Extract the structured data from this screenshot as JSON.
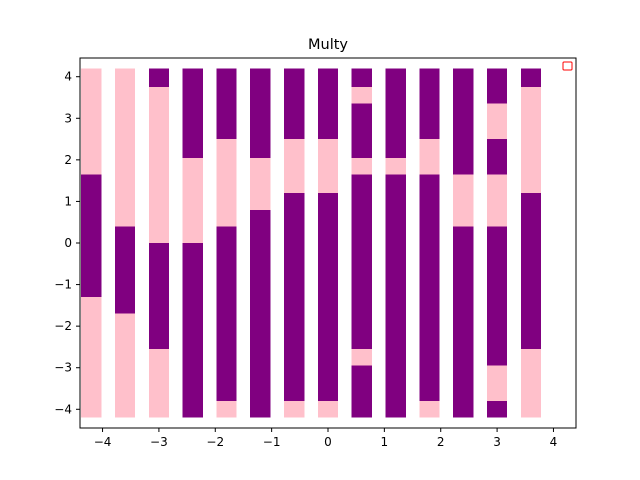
{
  "chart_data": {
    "type": "bar",
    "title": "Multy",
    "xlabel": "",
    "ylabel": "",
    "xlim": [
      -4.4,
      4.4
    ],
    "ylim": [
      -4.45,
      4.45
    ],
    "xticks": [
      -4,
      -3,
      -2,
      -1,
      0,
      1,
      2,
      3,
      4
    ],
    "yticks": [
      -4,
      -3,
      -2,
      -1,
      0,
      1,
      2,
      3,
      4
    ],
    "bar_width": 0.36,
    "y_bottom": -4.2,
    "y_top": 4.2,
    "legend": {
      "placement": "top-right",
      "entries": [
        ""
      ]
    },
    "colors": {
      "purple": "#800080",
      "pink": "#ffc0cb"
    },
    "bars": [
      {
        "x": -4.2,
        "segments": [
          {
            "from": -4.2,
            "to": -1.3,
            "color": "pink"
          },
          {
            "from": -1.3,
            "to": 1.65,
            "color": "purple"
          },
          {
            "from": 1.65,
            "to": 4.2,
            "color": "pink"
          }
        ]
      },
      {
        "x": -3.6,
        "segments": [
          {
            "from": -4.2,
            "to": -1.7,
            "color": "pink"
          },
          {
            "from": -1.7,
            "to": 0.4,
            "color": "purple"
          },
          {
            "from": 0.4,
            "to": 4.2,
            "color": "pink"
          }
        ]
      },
      {
        "x": -3.0,
        "segments": [
          {
            "from": -4.2,
            "to": -2.55,
            "color": "pink"
          },
          {
            "from": -2.55,
            "to": 0.0,
            "color": "purple"
          },
          {
            "from": 0.0,
            "to": 3.75,
            "color": "pink"
          },
          {
            "from": 3.75,
            "to": 4.2,
            "color": "purple"
          }
        ]
      },
      {
        "x": -2.4,
        "segments": [
          {
            "from": -4.2,
            "to": 0.0,
            "color": "purple"
          },
          {
            "from": 0.0,
            "to": 2.05,
            "color": "pink"
          },
          {
            "from": 2.05,
            "to": 4.2,
            "color": "purple"
          }
        ]
      },
      {
        "x": -1.8,
        "segments": [
          {
            "from": -4.2,
            "to": -3.8,
            "color": "pink"
          },
          {
            "from": -3.8,
            "to": 0.4,
            "color": "purple"
          },
          {
            "from": 0.4,
            "to": 2.5,
            "color": "pink"
          },
          {
            "from": 2.5,
            "to": 4.2,
            "color": "purple"
          }
        ]
      },
      {
        "x": -1.2,
        "segments": [
          {
            "from": -4.2,
            "to": 0.8,
            "color": "purple"
          },
          {
            "from": 0.8,
            "to": 2.05,
            "color": "pink"
          },
          {
            "from": 2.05,
            "to": 4.2,
            "color": "purple"
          }
        ]
      },
      {
        "x": -0.6,
        "segments": [
          {
            "from": -4.2,
            "to": -3.8,
            "color": "pink"
          },
          {
            "from": -3.8,
            "to": 1.2,
            "color": "purple"
          },
          {
            "from": 1.2,
            "to": 2.5,
            "color": "pink"
          },
          {
            "from": 2.5,
            "to": 4.2,
            "color": "purple"
          }
        ]
      },
      {
        "x": 0.0,
        "segments": [
          {
            "from": -4.2,
            "to": -3.8,
            "color": "pink"
          },
          {
            "from": -3.8,
            "to": 1.2,
            "color": "purple"
          },
          {
            "from": 1.2,
            "to": 2.5,
            "color": "pink"
          },
          {
            "from": 2.5,
            "to": 4.2,
            "color": "purple"
          }
        ]
      },
      {
        "x": 0.6,
        "segments": [
          {
            "from": -4.2,
            "to": -2.95,
            "color": "purple"
          },
          {
            "from": -2.95,
            "to": -2.55,
            "color": "pink"
          },
          {
            "from": -2.55,
            "to": 1.65,
            "color": "purple"
          },
          {
            "from": 1.65,
            "to": 2.05,
            "color": "pink"
          },
          {
            "from": 2.05,
            "to": 3.35,
            "color": "purple"
          },
          {
            "from": 3.35,
            "to": 3.75,
            "color": "pink"
          },
          {
            "from": 3.75,
            "to": 4.2,
            "color": "purple"
          }
        ]
      },
      {
        "x": 1.2,
        "segments": [
          {
            "from": -4.2,
            "to": 1.65,
            "color": "purple"
          },
          {
            "from": 1.65,
            "to": 2.05,
            "color": "pink"
          },
          {
            "from": 2.05,
            "to": 4.2,
            "color": "purple"
          }
        ]
      },
      {
        "x": 1.8,
        "segments": [
          {
            "from": -4.2,
            "to": -3.8,
            "color": "pink"
          },
          {
            "from": -3.8,
            "to": 1.65,
            "color": "purple"
          },
          {
            "from": 1.65,
            "to": 2.5,
            "color": "pink"
          },
          {
            "from": 2.5,
            "to": 4.2,
            "color": "purple"
          }
        ]
      },
      {
        "x": 2.4,
        "segments": [
          {
            "from": -4.2,
            "to": 0.4,
            "color": "purple"
          },
          {
            "from": 0.4,
            "to": 1.65,
            "color": "pink"
          },
          {
            "from": 1.65,
            "to": 4.2,
            "color": "purple"
          }
        ]
      },
      {
        "x": 3.0,
        "segments": [
          {
            "from": -4.2,
            "to": -3.8,
            "color": "purple"
          },
          {
            "from": -3.8,
            "to": -2.95,
            "color": "pink"
          },
          {
            "from": -2.95,
            "to": 0.4,
            "color": "purple"
          },
          {
            "from": 0.4,
            "to": 1.65,
            "color": "pink"
          },
          {
            "from": 1.65,
            "to": 2.5,
            "color": "purple"
          },
          {
            "from": 2.5,
            "to": 3.35,
            "color": "pink"
          },
          {
            "from": 3.35,
            "to": 4.2,
            "color": "purple"
          }
        ]
      },
      {
        "x": 3.6,
        "segments": [
          {
            "from": -4.2,
            "to": -2.55,
            "color": "pink"
          },
          {
            "from": -2.55,
            "to": 1.2,
            "color": "purple"
          },
          {
            "from": 1.2,
            "to": 3.75,
            "color": "pink"
          },
          {
            "from": 3.75,
            "to": 4.2,
            "color": "purple"
          }
        ]
      }
    ]
  }
}
